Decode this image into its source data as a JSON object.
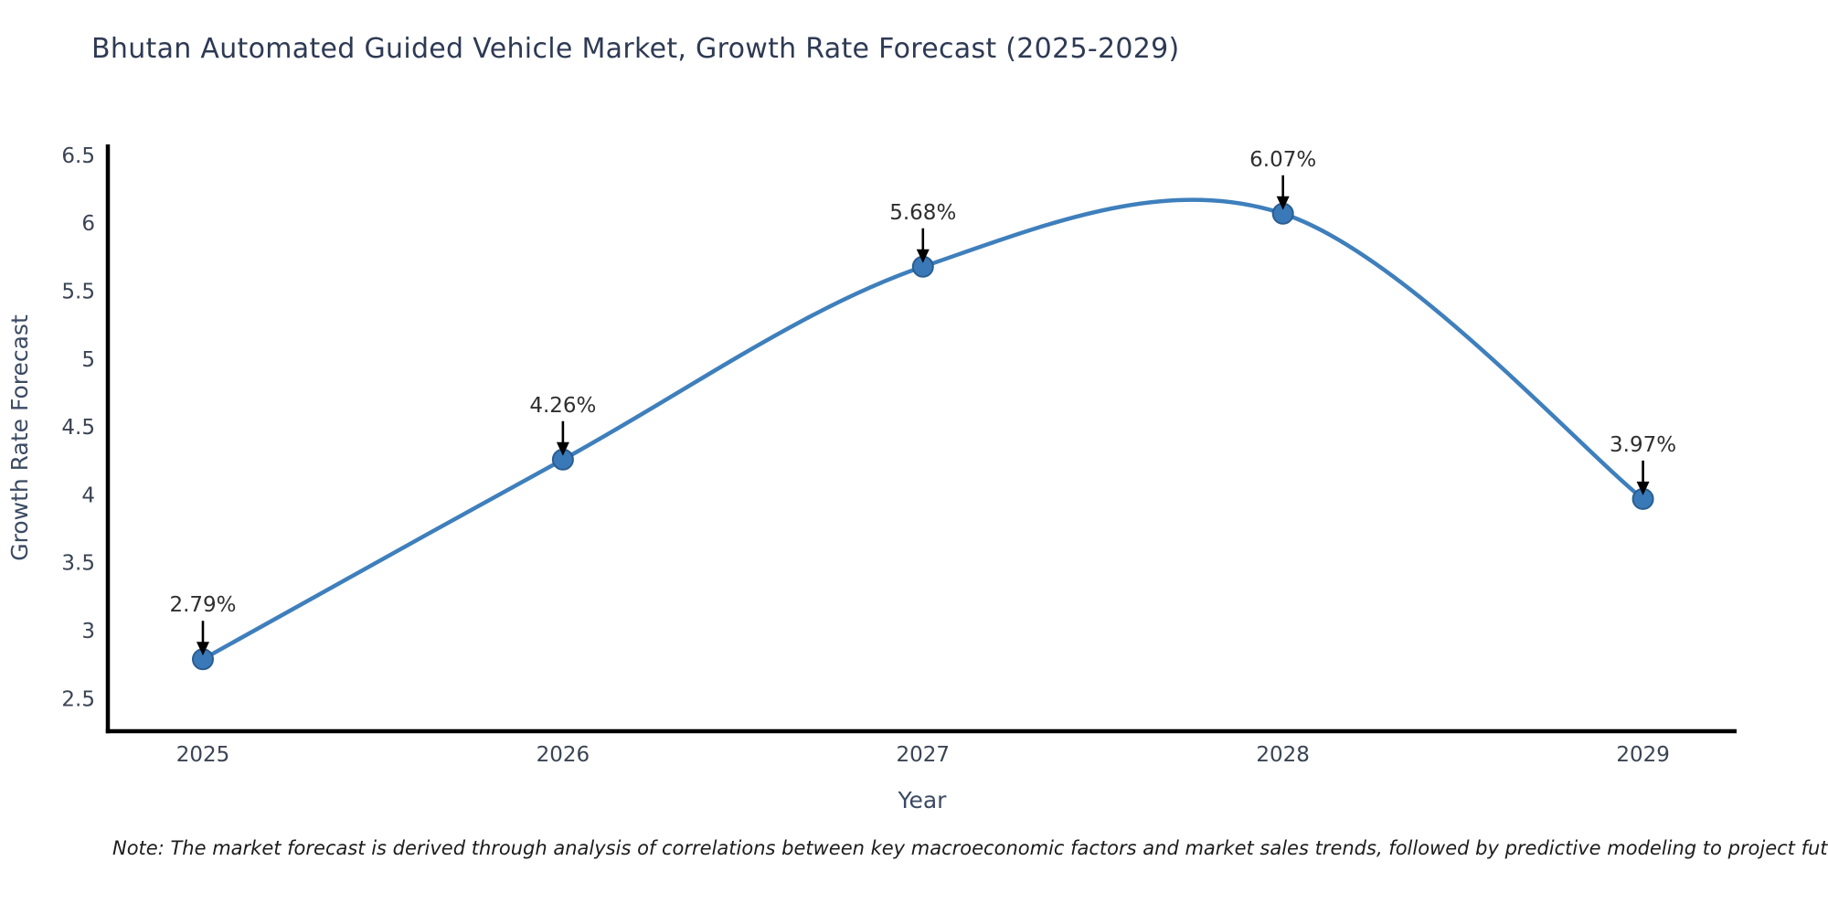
{
  "chart": {
    "title": "Bhutan Automated Guided Vehicle Market, Growth Rate Forecast (2025-2029)"
  },
  "chart_data": {
    "type": "line",
    "x": [
      2025,
      2026,
      2027,
      2028,
      2029
    ],
    "values": [
      2.79,
      4.26,
      5.68,
      6.07,
      3.97
    ],
    "point_labels": [
      "2.79%",
      "4.26%",
      "5.68%",
      "6.07%",
      "3.97%"
    ],
    "x_tick_labels": [
      "2025",
      "2026",
      "2027",
      "2028",
      "2029"
    ],
    "y_ticks": [
      2.5,
      3,
      3.5,
      4,
      4.5,
      5,
      5.5,
      6,
      6.5
    ],
    "y_tick_labels": [
      "2.5",
      "3",
      "3.5",
      "4",
      "4.5",
      "5",
      "5.5",
      "6",
      "6.5"
    ],
    "title": "Bhutan Automated Guided Vehicle Market, Growth Rate Forecast (2025-2029)",
    "xlabel": "Year",
    "ylabel": "Growth Rate Forecast",
    "xlim": [
      2024.736,
      2029.26
    ],
    "ylim": [
      2.26,
      6.58
    ],
    "grid": false,
    "legend": "none",
    "smooth": true,
    "colors": {
      "line": "#3e7fbc",
      "marker_fill": "#3a79b8",
      "marker_edge": "#2a5e91",
      "axis": "#000000",
      "tick_label": "#3a4454",
      "axis_label": "#3b4a63",
      "annotation_text": "#2f2f2f",
      "annotation_arrow": "#000000",
      "title": "#2e3a54"
    }
  },
  "note": {
    "text": "Note: The market forecast is derived through analysis of correlations between key macroeconomic factors and market sales trends, followed by predictive modeling to project future sales trends."
  }
}
